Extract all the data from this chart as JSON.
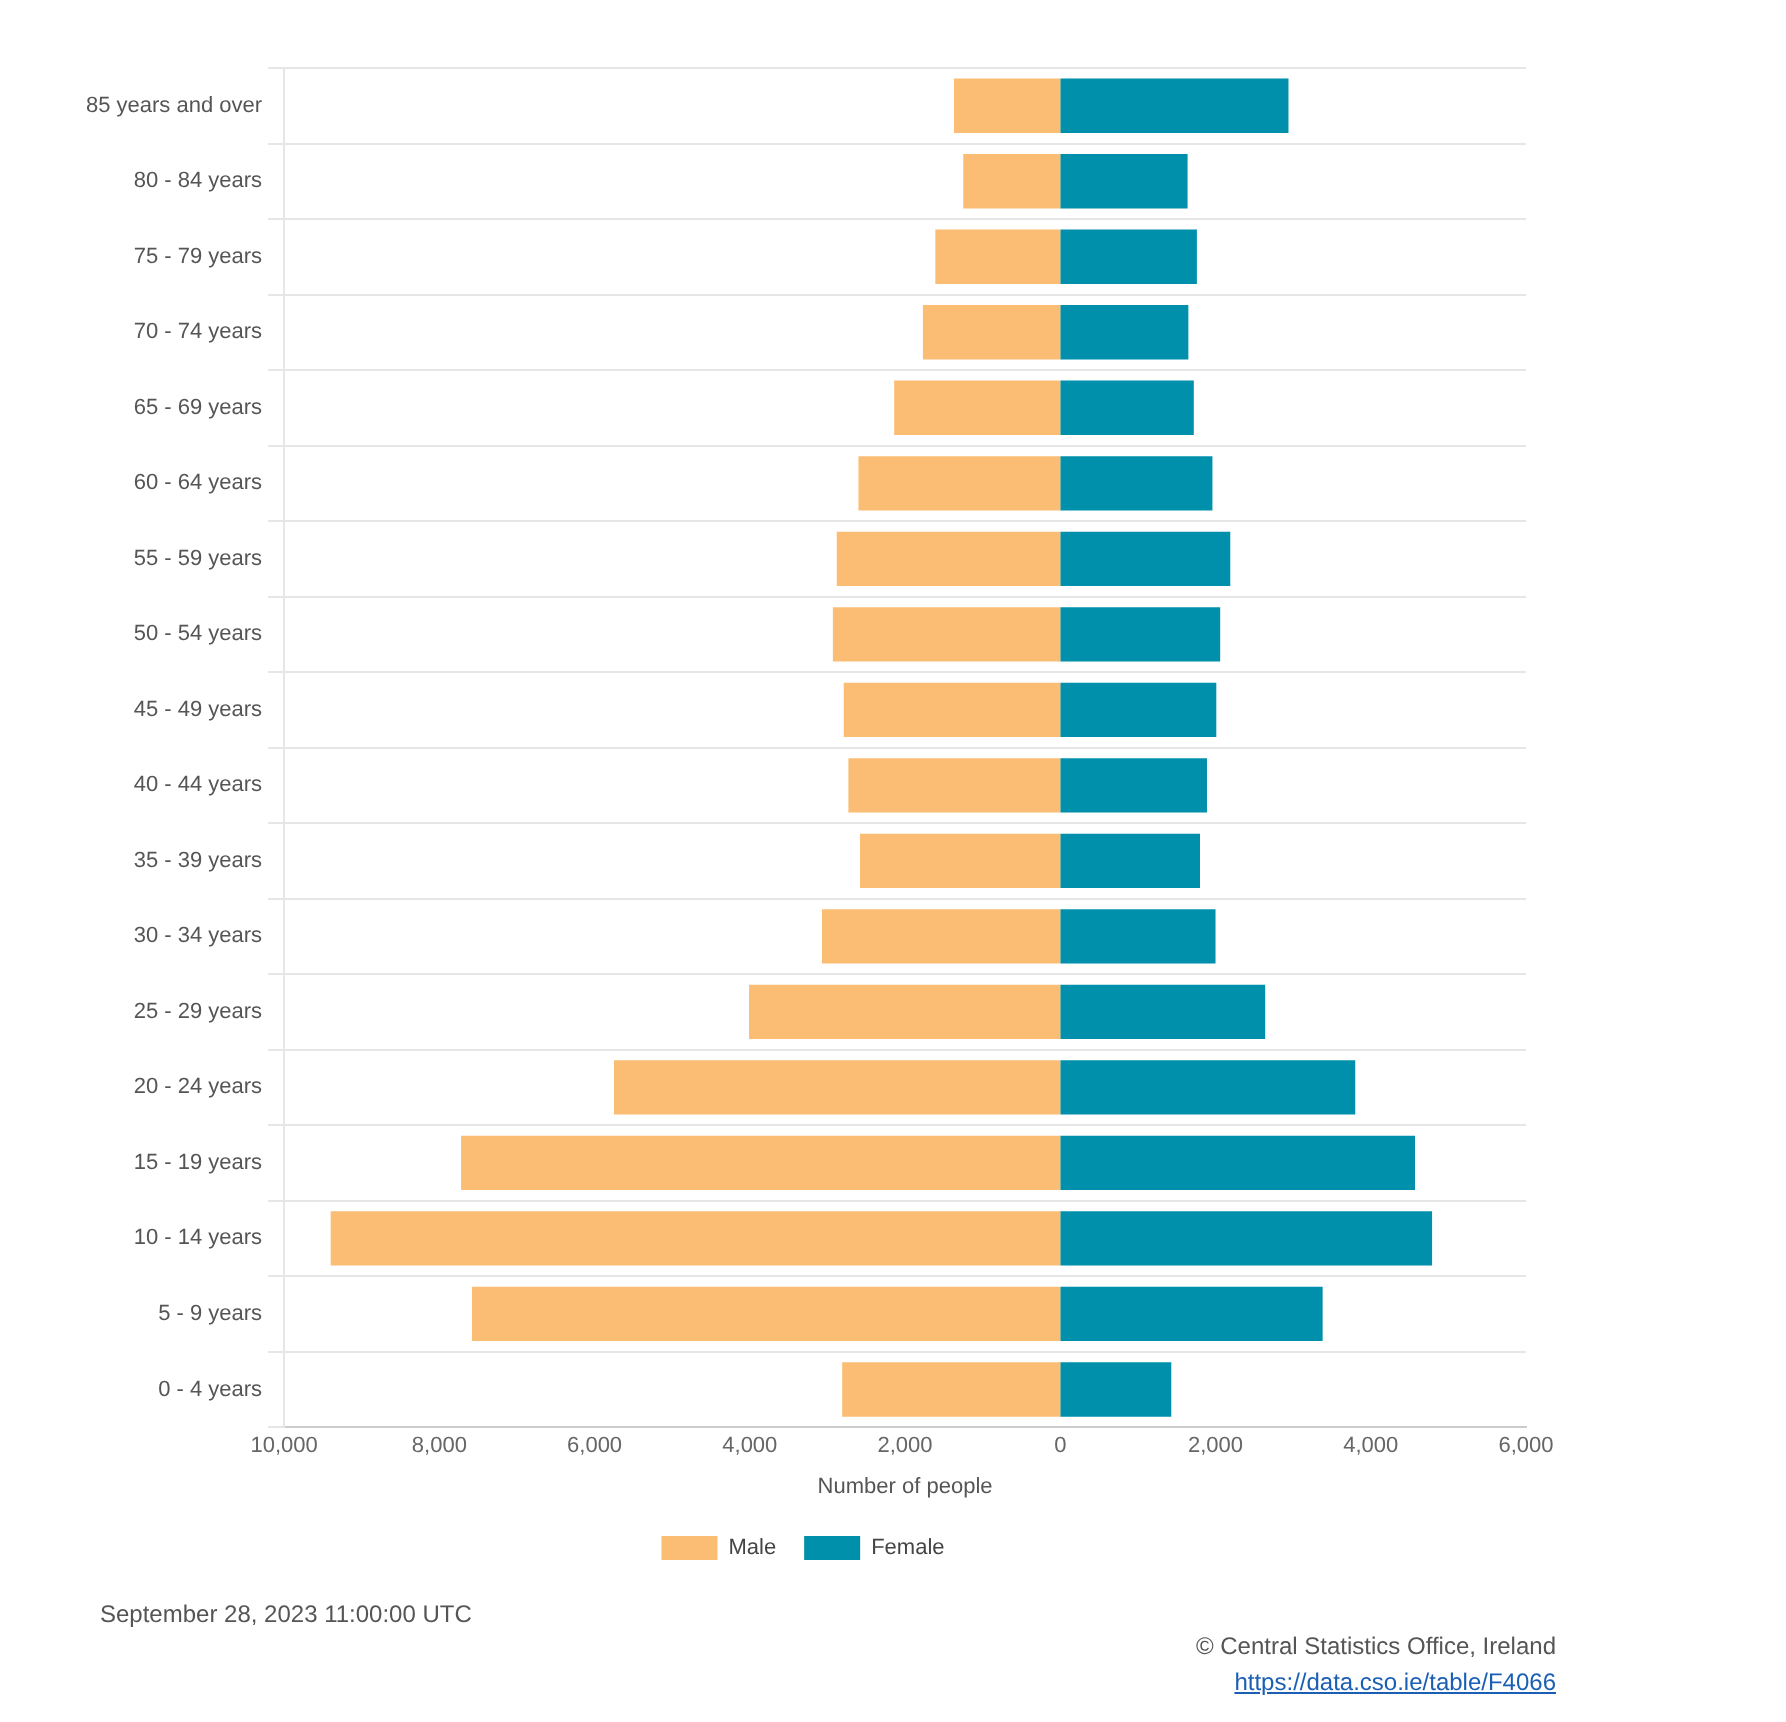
{
  "chart_data": {
    "type": "bar",
    "orientation": "horizontal",
    "stacked": true,
    "categories": [
      "85 years and over",
      "80 - 84 years",
      "75 - 79 years",
      "70 - 74 years",
      "65 - 69 years",
      "60 - 64 years",
      "55 - 59 years",
      "50 - 54 years",
      "45 - 49 years",
      "40 - 44 years",
      "35 - 39 years",
      "30 - 34 years",
      "25 - 29 years",
      "20 - 24 years",
      "15 - 19 years",
      "10 - 14 years",
      "5 - 9 years",
      "0 - 4 years"
    ],
    "series": [
      {
        "name": "Male",
        "color": "#fbbd74",
        "values": [
          -1370,
          -1250,
          -1610,
          -1770,
          -2140,
          -2600,
          -2880,
          -2930,
          -2790,
          -2730,
          -2580,
          -3070,
          -4010,
          -5750,
          -7720,
          -9400,
          -7580,
          -2810
        ]
      },
      {
        "name": "Female",
        "color": "#0090ab",
        "values": [
          2940,
          1640,
          1760,
          1650,
          1720,
          1960,
          2190,
          2060,
          2010,
          1890,
          1800,
          2000,
          2640,
          3800,
          4570,
          4790,
          3380,
          1430
        ]
      }
    ],
    "xlabel": "Number of people",
    "xlim": [
      -10000,
      6000
    ],
    "xticks": [
      {
        "value": -10000,
        "label": "10,000"
      },
      {
        "value": -8000,
        "label": "8,000"
      },
      {
        "value": -6000,
        "label": "6,000"
      },
      {
        "value": -4000,
        "label": "4,000"
      },
      {
        "value": -2000,
        "label": "2,000"
      },
      0,
      {
        "value": 2000,
        "label": "2,000"
      },
      {
        "value": 4000,
        "label": "4,000"
      },
      {
        "value": 6000,
        "label": "6,000"
      }
    ],
    "grid": "y",
    "legend": "bottom",
    "annotations": [
      "September 28, 2023 11:00:00 UTC",
      "© Central Statistics Office, Ireland",
      "https://data.cso.ie/table/F4066"
    ]
  }
}
